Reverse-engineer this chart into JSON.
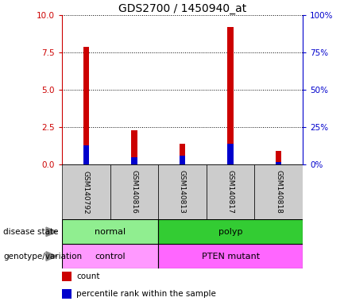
{
  "title": "GDS2700 / 1450940_at",
  "samples": [
    "GSM140792",
    "GSM140816",
    "GSM140813",
    "GSM140817",
    "GSM140818"
  ],
  "count_values": [
    7.9,
    2.3,
    1.4,
    9.2,
    0.9
  ],
  "percentile_values": [
    13,
    5,
    6,
    14,
    2
  ],
  "ylim_left": [
    0,
    10
  ],
  "ylim_right": [
    0,
    100
  ],
  "yticks_left": [
    0,
    2.5,
    5,
    7.5,
    10
  ],
  "yticks_right": [
    0,
    25,
    50,
    75,
    100
  ],
  "count_color": "#CC0000",
  "percentile_color": "#0000CC",
  "normal_color": "#90EE90",
  "polyp_color": "#33CC33",
  "control_color": "#FF99FF",
  "pten_color": "#FF66FF",
  "label_row1": "disease state",
  "label_row2": "genotype/variation",
  "legend_count": "count",
  "legend_percentile": "percentile rank within the sample",
  "title_fontsize": 10,
  "tick_fontsize": 7.5,
  "sample_fontsize": 6.5,
  "label_fontsize": 8,
  "bar_width": 0.12
}
